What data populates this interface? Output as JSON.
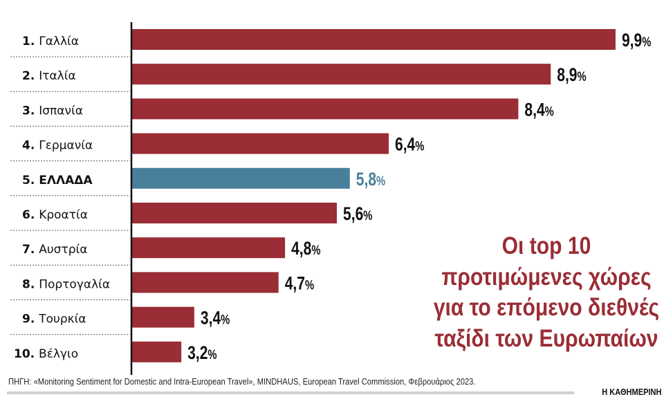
{
  "chart_data": {
    "type": "bar",
    "orientation": "horizontal",
    "title": "Οι top 10 προτιμώμενες χώρες για το επόμενο διεθνές ταξίδι των Ευρωπαίων",
    "title_lines": [
      "Οι top 10",
      "προτιμώμενες χώρες",
      "για το επόμενο διεθνές",
      "ταξίδι των Ευρωπαίων"
    ],
    "ranks": [
      "1.",
      "2.",
      "3.",
      "4.",
      "5.",
      "6.",
      "7.",
      "8.",
      "9.",
      "10."
    ],
    "categories": [
      "Γαλλία",
      "Ιταλία",
      "Ισπανία",
      "Γερμανία",
      "ΕΛΛΑΔΑ",
      "Κροατία",
      "Αυστρία",
      "Πορτογαλία",
      "Τουρκία",
      "Βέλγιο"
    ],
    "values": [
      9.9,
      8.9,
      8.4,
      6.4,
      5.8,
      5.6,
      4.8,
      4.7,
      3.4,
      3.2
    ],
    "value_labels": [
      "9,9",
      "8,9",
      "8,4",
      "6,4",
      "5,8",
      "5,6",
      "4,8",
      "4,7",
      "3,4",
      "3,2"
    ],
    "unit": "%",
    "highlight_index": 4,
    "colors": {
      "bar": "#9a2d35",
      "highlight": "#4a7f9b",
      "title": "#9a2d35"
    },
    "grid": false,
    "legend": "none"
  },
  "footer": {
    "source": "ΠΗΓΗ: «Monitoring Sentiment for Domestic and Intra-European Travel», MINDHAUS, European Travel Commission, Φεβρουάριος 2023.",
    "brand": "Η ΚΑΘΗΜΕΡΙΝΗ"
  }
}
